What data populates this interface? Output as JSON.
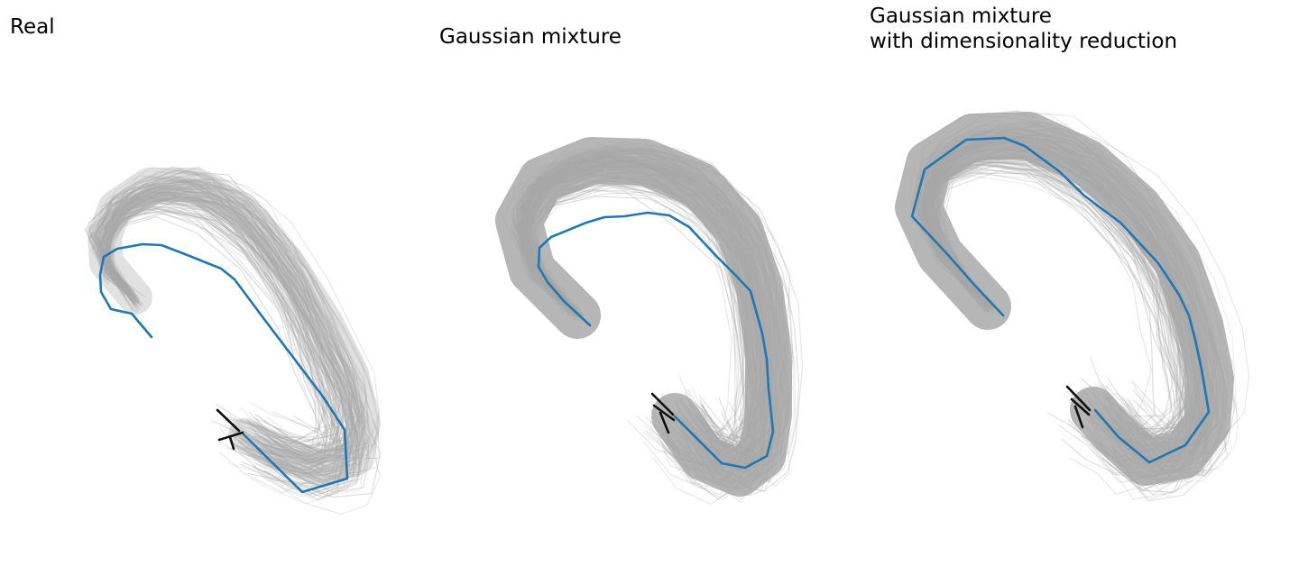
{
  "panels": [
    {
      "title": "Real"
    },
    {
      "title": "Gaussian mixture"
    },
    {
      "title": "Gaussian mixture\nwith dimensionality reduction"
    }
  ],
  "colors": {
    "sample_curves": "#a9a9a9",
    "highlighted_curve": "#1f77b4",
    "marker": "#111111",
    "background": "#ffffff"
  },
  "chart_data": [
    {
      "type": "line",
      "title": "Real",
      "x": [],
      "series": [],
      "highlighted_curve": [
        [
          168,
          374
        ],
        [
          146,
          348
        ],
        [
          123,
          343
        ],
        [
          112,
          324
        ],
        [
          111,
          305
        ],
        [
          115,
          285
        ],
        [
          130,
          276
        ],
        [
          158,
          271
        ],
        [
          179,
          272
        ],
        [
          205,
          282
        ],
        [
          245,
          298
        ],
        [
          260,
          310
        ],
        [
          295,
          357
        ],
        [
          358,
          440
        ],
        [
          382,
          477
        ],
        [
          385,
          531
        ],
        [
          335,
          546
        ],
        [
          270,
          482
        ]
      ],
      "sample_count": 150,
      "grid": false,
      "axes_visible": false
    },
    {
      "type": "line",
      "title": "Gaussian mixture",
      "x": [],
      "series": [],
      "highlighted_curve": [
        [
          654,
          361
        ],
        [
          625,
          334
        ],
        [
          607,
          313
        ],
        [
          597,
          296
        ],
        [
          598,
          275
        ],
        [
          611,
          263
        ],
        [
          650,
          247
        ],
        [
          670,
          241
        ],
        [
          692,
          240
        ],
        [
          718,
          236
        ],
        [
          742,
          239
        ],
        [
          764,
          252
        ],
        [
          795,
          285
        ],
        [
          815,
          305
        ],
        [
          832,
          323
        ],
        [
          845,
          370
        ],
        [
          850,
          399
        ],
        [
          852,
          431
        ],
        [
          857,
          479
        ],
        [
          850,
          506
        ],
        [
          826,
          519
        ],
        [
          800,
          514
        ],
        [
          748,
          462
        ]
      ],
      "sample_count": 180,
      "grid": false,
      "axes_visible": false
    },
    {
      "type": "line",
      "title": "Gaussian mixture with dimensionality reduction",
      "x": [],
      "series": [],
      "highlighted_curve": [
        [
          1112,
          350
        ],
        [
          1080,
          316
        ],
        [
          1052,
          284
        ],
        [
          1011,
          240
        ],
        [
          1025,
          188
        ],
        [
          1071,
          155
        ],
        [
          1113,
          153
        ],
        [
          1136,
          162
        ],
        [
          1174,
          190
        ],
        [
          1202,
          217
        ],
        [
          1242,
          247
        ],
        [
          1284,
          292
        ],
        [
          1307,
          327
        ],
        [
          1318,
          350
        ],
        [
          1325,
          377
        ],
        [
          1332,
          410
        ],
        [
          1340,
          457
        ],
        [
          1314,
          494
        ],
        [
          1274,
          513
        ],
        [
          1240,
          485
        ],
        [
          1214,
          455
        ]
      ],
      "sample_count": 180,
      "grid": false,
      "axes_visible": false
    }
  ]
}
